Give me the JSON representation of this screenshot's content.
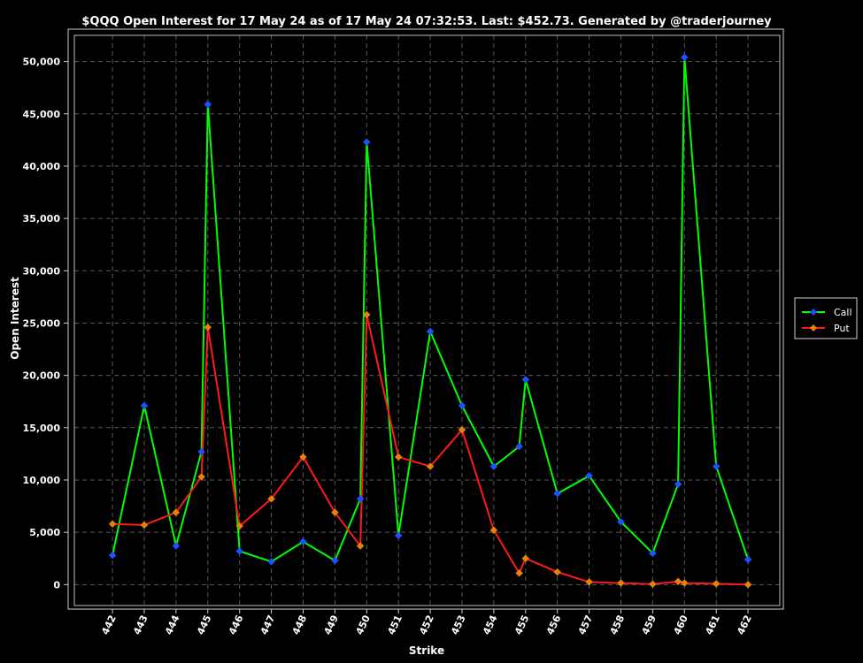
{
  "chart_data": {
    "type": "line",
    "title": "$QQQ Open Interest for 17 May 24 as of 17 May 24 07:32:53.  Last: $452.73.  Generated by @traderjourney",
    "xlabel": "Strike",
    "ylabel": "Open Interest",
    "ylim": [
      -2000,
      52500
    ],
    "xlim": [
      440.8,
      463.0
    ],
    "y_ticks": [
      0,
      5000,
      10000,
      15000,
      20000,
      25000,
      30000,
      35000,
      40000,
      45000,
      50000
    ],
    "y_tick_labels": [
      "0",
      "5,000",
      "10,000",
      "15,000",
      "20,000",
      "25,000",
      "30,000",
      "35,000",
      "40,000",
      "45,000",
      "50,000"
    ],
    "x_ticks": [
      442,
      443,
      444,
      445,
      446,
      447,
      448,
      449,
      450,
      451,
      452,
      453,
      454,
      455,
      456,
      457,
      458,
      459,
      460,
      461,
      462
    ],
    "x_tick_labels": [
      "442",
      "443",
      "444",
      "445",
      "446",
      "447",
      "448",
      "449",
      "450",
      "451",
      "452",
      "453",
      "454",
      "455",
      "456",
      "457",
      "458",
      "459",
      "460",
      "461",
      "462"
    ],
    "grid": true,
    "legend_position": "right",
    "series": [
      {
        "name": "Call",
        "color": "#00ff00",
        "marker_color": "#1e50ff",
        "x": [
          442,
          443,
          444,
          444.8,
          445,
          446,
          447,
          448,
          449,
          449.8,
          450,
          451,
          452,
          453,
          454,
          454.8,
          455,
          456,
          457,
          458,
          459,
          459.8,
          460,
          461,
          462
        ],
        "y": [
          2800,
          17100,
          3700,
          12700,
          45900,
          3200,
          2200,
          4100,
          2300,
          8200,
          42300,
          4700,
          24200,
          17100,
          11300,
          13200,
          19600,
          8700,
          10400,
          6000,
          3000,
          9600,
          50400,
          11300,
          2400
        ]
      },
      {
        "name": "Put",
        "color": "#ff1a1a",
        "marker_color": "#e6820a",
        "x": [
          442,
          443,
          444,
          444.8,
          445,
          446,
          447,
          448,
          449,
          449.8,
          450,
          451,
          452,
          453,
          454,
          454.8,
          455,
          456,
          457,
          458,
          459,
          459.8,
          460,
          461,
          462
        ],
        "y": [
          5800,
          5700,
          6900,
          10300,
          24600,
          5600,
          8200,
          12200,
          6900,
          3700,
          25800,
          12200,
          11300,
          14800,
          5200,
          1100,
          2500,
          1200,
          250,
          150,
          50,
          300,
          150,
          80,
          0
        ]
      }
    ]
  }
}
